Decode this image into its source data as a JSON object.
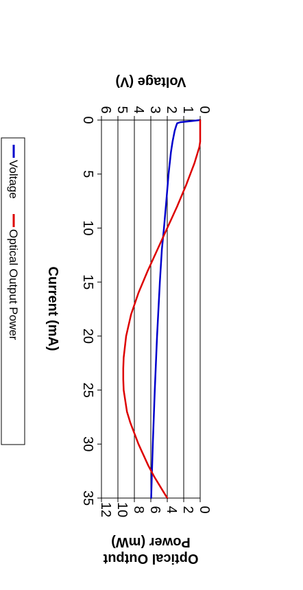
{
  "chart_data": {
    "type": "line",
    "xlabel": "Current (mA)",
    "ylabel_left": "Voltage (V)",
    "ylabel_right_line1": "Optical Output",
    "ylabel_right_line2": "Power (mW)",
    "xlim": [
      0,
      35
    ],
    "ylim_left": [
      0,
      6
    ],
    "ylim_right": [
      0,
      12
    ],
    "x_ticks": [
      "0",
      "5",
      "10",
      "15",
      "20",
      "25",
      "30",
      "35"
    ],
    "y_left_ticks": [
      "0",
      "1",
      "2",
      "3",
      "4",
      "5",
      "6"
    ],
    "y_right_ticks": [
      "0",
      "2",
      "4",
      "6",
      "8",
      "10",
      "12"
    ],
    "grid": true,
    "legend_position": "bottom",
    "series": [
      {
        "name": "Voltage",
        "axis": "left",
        "color": "#0000cc",
        "x": [
          0,
          0.1,
          0.2,
          0.3,
          0.5,
          1,
          2,
          3,
          4,
          5,
          7,
          10,
          12,
          15,
          20,
          25,
          30,
          35
        ],
        "y": [
          0,
          0.6,
          1.2,
          1.4,
          1.45,
          1.55,
          1.68,
          1.78,
          1.85,
          1.92,
          2.03,
          2.2,
          2.33,
          2.45,
          2.62,
          2.76,
          2.88,
          2.98
        ]
      },
      {
        "name": "Optical Output Power",
        "axis": "right",
        "color": "#dd0000",
        "x": [
          0,
          1,
          2,
          2.5,
          3,
          4,
          5,
          6,
          8,
          10,
          12,
          14,
          16,
          18,
          20,
          22,
          23,
          24,
          25,
          26,
          27,
          28,
          30,
          32,
          33,
          34,
          35
        ],
        "y": [
          0,
          0,
          0,
          0.1,
          0.3,
          0.7,
          1.2,
          1.7,
          2.8,
          4.0,
          5.2,
          6.4,
          7.5,
          8.4,
          9.0,
          9.3,
          9.35,
          9.35,
          9.3,
          9.1,
          8.9,
          8.5,
          7.5,
          6.3,
          5.6,
          4.8,
          4.0
        ]
      }
    ]
  }
}
